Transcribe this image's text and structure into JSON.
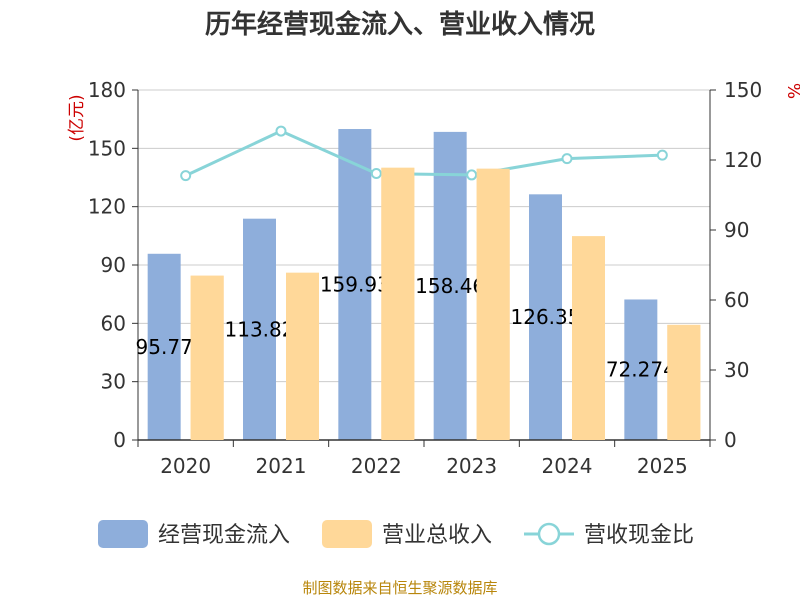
{
  "chart_data": {
    "type": "bar",
    "title": "历年经营现金流入、营业收入情况",
    "categories": [
      "2020",
      "2021",
      "2022",
      "2023",
      "2024",
      "2025"
    ],
    "series": [
      {
        "name": "经营现金流入",
        "type": "bar",
        "axis": "left",
        "color": "#8eaedb",
        "values": [
          95.77,
          113.82,
          159.93,
          158.46,
          126.35,
          72.27
        ],
        "labels": [
          "95.77",
          "113.82",
          "159.93",
          "158.46",
          "126.35",
          "72.274"
        ]
      },
      {
        "name": "营业总收入",
        "type": "bar",
        "axis": "left",
        "color": "#ffd899",
        "values": [
          84.5,
          86.0,
          140.0,
          139.5,
          104.8,
          59.2
        ]
      },
      {
        "name": "营收现金比",
        "type": "line",
        "axis": "right",
        "color": "#88d4d8",
        "values": [
          113.3,
          132.4,
          114.2,
          113.6,
          120.6,
          122.1
        ]
      }
    ],
    "y_left": {
      "label": "(亿元)",
      "min": 0,
      "max": 180,
      "ticks": [
        0,
        30,
        60,
        90,
        120,
        150,
        180
      ]
    },
    "y_right": {
      "label": "%",
      "min": 0,
      "max": 150,
      "ticks": [
        0,
        30,
        60,
        90,
        120,
        150
      ]
    },
    "grid": true,
    "legend": "bottom"
  },
  "source": "制图数据来自恒生聚源数据库"
}
